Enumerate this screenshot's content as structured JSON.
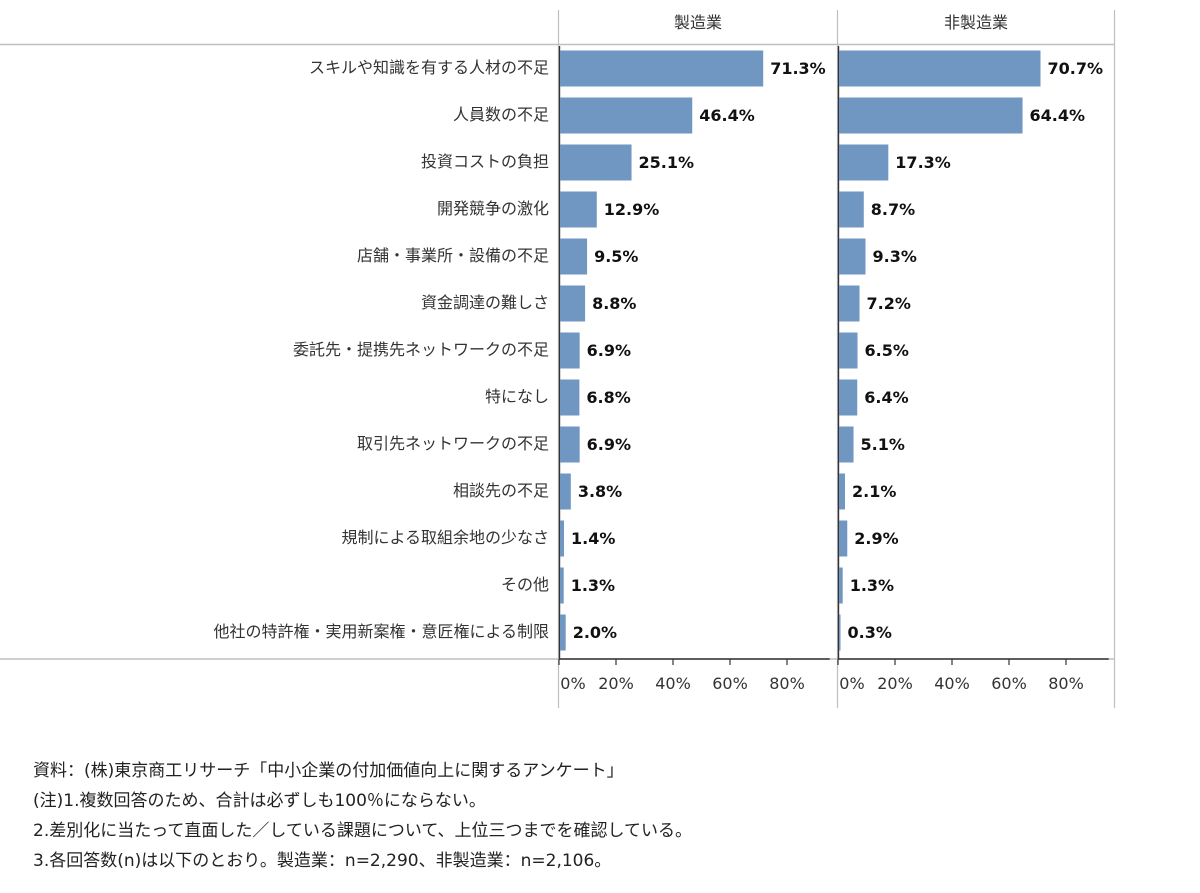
{
  "chart_data": {
    "type": "bar",
    "orientation": "horizontal",
    "categories": [
      "スキルや知識を有する人材の不足",
      "人員数の不足",
      "投資コストの負担",
      "開発競争の激化",
      "店舗・事業所・設備の不足",
      "資金調達の難しさ",
      "委託先・提携先ネットワークの不足",
      "特になし",
      "取引先ネットワークの不足",
      "相談先の不足",
      "規制による取組余地の少なさ",
      "その他",
      "他社の特許権・実用新案権・意匠権による制限"
    ],
    "series": [
      {
        "name": "製造業",
        "values": [
          71.3,
          46.4,
          25.1,
          12.9,
          9.5,
          8.8,
          6.9,
          6.8,
          6.9,
          3.8,
          1.4,
          1.3,
          2.0
        ]
      },
      {
        "name": "非製造業",
        "values": [
          70.7,
          64.4,
          17.3,
          8.7,
          9.3,
          7.2,
          6.5,
          6.4,
          5.1,
          2.1,
          2.9,
          1.3,
          0.3
        ]
      }
    ],
    "value_labels": [
      [
        "71.3%",
        "46.4%",
        "25.1%",
        "12.9%",
        "9.5%",
        "8.8%",
        "6.9%",
        "6.8%",
        "6.9%",
        "3.8%",
        "1.4%",
        "1.3%",
        "2.0%"
      ],
      [
        "70.7%",
        "64.4%",
        "17.3%",
        "8.7%",
        "9.3%",
        "7.2%",
        "6.5%",
        "6.4%",
        "5.1%",
        "2.1%",
        "2.9%",
        "1.3%",
        "0.3%"
      ]
    ],
    "xticks": [
      "0%",
      "20%",
      "40%",
      "60%",
      "80%"
    ],
    "xtick_values": [
      0,
      20,
      40,
      60,
      80
    ],
    "xlim": [
      0,
      95
    ],
    "bar_color": "#7096c2",
    "grid": false,
    "legend": "none"
  },
  "notes": {
    "source": "資料：(株)東京商工リサーチ「中小企業の付加価値向上に関するアンケート」",
    "note1": "(注)1.複数回答のため、合計は必ずしも100％にならない。",
    "note2": "2.差別化に当たって直面した／している課題について、上位三つまでを確認している。",
    "note3": "3.各回答数(n)は以下のとおり。製造業：n=2,290、非製造業：n=2,106。"
  }
}
